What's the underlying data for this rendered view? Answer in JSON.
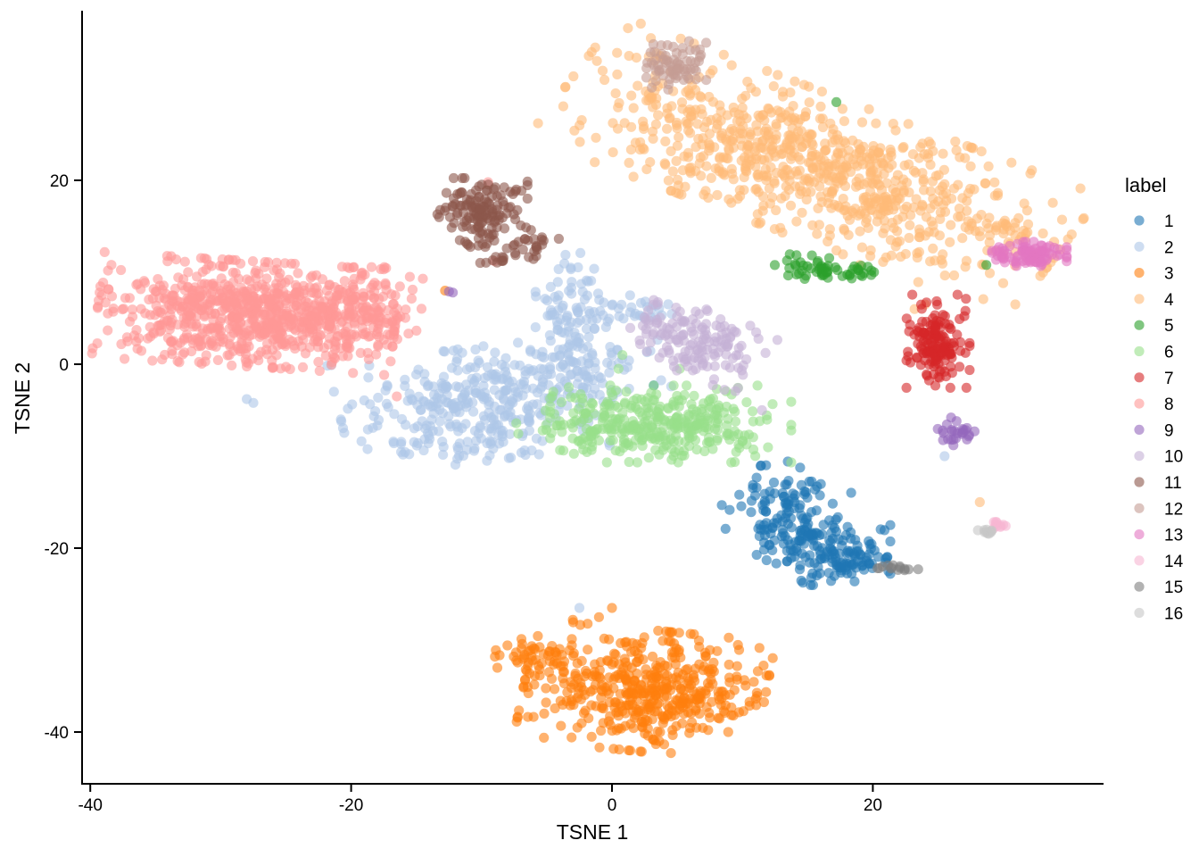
{
  "chart_data": {
    "type": "scatter",
    "title": "",
    "xlabel": "TSNE 1",
    "ylabel": "TSNE 2",
    "xlim": [
      -40.5,
      37.5
    ],
    "ylim": [
      -45.5,
      38.5
    ],
    "xticks": [
      -40,
      -20,
      0,
      20
    ],
    "yticks": [
      -40,
      -20,
      0,
      20
    ],
    "grid": false,
    "legend": {
      "title": "label",
      "position": "right"
    },
    "point_opacity": 0.6,
    "series": [
      {
        "name": "1",
        "color": "#1F77B4",
        "clusters": [
          {
            "cx": 13.5,
            "cy": -16.5,
            "sx": 2.2,
            "sy": 2.2,
            "angle": -35,
            "n": 120
          },
          {
            "cx": 16.5,
            "cy": -20.5,
            "sx": 2.2,
            "sy": 1.6,
            "angle": 0,
            "n": 120
          },
          {
            "cx": 19.0,
            "cy": -21.5,
            "sx": 1.0,
            "sy": 0.6,
            "angle": 0,
            "n": 25
          }
        ],
        "points": [
          [
            3.2,
            -2.3
          ]
        ]
      },
      {
        "name": "2",
        "color": "#AEC7E8",
        "clusters": [
          {
            "cx": -11.0,
            "cy": -4.5,
            "sx": 4.5,
            "sy": 2.8,
            "angle": 10,
            "n": 330
          },
          {
            "cx": -3.0,
            "cy": 5.5,
            "sx": 1.3,
            "sy": 3.0,
            "angle": 0,
            "n": 90
          },
          {
            "cx": -2.5,
            "cy": -1.0,
            "sx": 3.2,
            "sy": 2.2,
            "angle": 0,
            "n": 90
          },
          {
            "cx": 1.5,
            "cy": 5.8,
            "sx": 1.8,
            "sy": 0.8,
            "angle": 0,
            "n": 30
          }
        ],
        "points": [
          [
            -27.5,
            -4.2
          ],
          [
            -28.0,
            -3.8
          ],
          [
            25.5,
            -10.0
          ],
          [
            -2.5,
            -26.5
          ]
        ]
      },
      {
        "name": "3",
        "color": "#FF7F0E",
        "clusters": [
          {
            "cx": 2.5,
            "cy": -35.5,
            "sx": 4.2,
            "sy": 3.0,
            "angle": -8,
            "n": 470
          },
          {
            "cx": -6.0,
            "cy": -31.5,
            "sx": 1.4,
            "sy": 1.0,
            "angle": 0,
            "n": 40
          }
        ],
        "points": [
          [
            -1.0,
            -27.5
          ],
          [
            -3.0,
            -27.8
          ],
          [
            0.0,
            -26.5
          ],
          [
            -12.8,
            8.0
          ]
        ]
      },
      {
        "name": "4",
        "color": "#FFBB78",
        "clusters": [
          {
            "cx": 15.5,
            "cy": 21.5,
            "sx": 9.5,
            "sy": 3.4,
            "angle": -28,
            "n": 820
          },
          {
            "cx": 29.5,
            "cy": 14.5,
            "sx": 1.2,
            "sy": 0.6,
            "angle": 0,
            "n": 15
          }
        ],
        "points": [
          [
            23.8,
            24.0
          ],
          [
            24.3,
            24.2
          ],
          [
            28.2,
            -15.0
          ],
          [
            24.0,
            6.5
          ],
          [
            23.2,
            6.0
          ],
          [
            28.5,
            10.8
          ],
          [
            19.0,
            10.8
          ]
        ]
      },
      {
        "name": "5",
        "color": "#2CA02C",
        "clusters": [
          {
            "cx": 16.0,
            "cy": 10.2,
            "sx": 1.6,
            "sy": 0.8,
            "angle": 0,
            "n": 45
          },
          {
            "cx": 19.2,
            "cy": 10.0,
            "sx": 0.5,
            "sy": 0.4,
            "angle": 0,
            "n": 12
          }
        ],
        "points": [
          [
            17.2,
            28.5
          ],
          [
            28.7,
            10.8
          ]
        ]
      },
      {
        "name": "6",
        "color": "#98DF8A",
        "clusters": [
          {
            "cx": 4.5,
            "cy": -6.5,
            "sx": 4.2,
            "sy": 1.9,
            "angle": 0,
            "n": 320
          },
          {
            "cx": -2.5,
            "cy": -7.5,
            "sx": 2.2,
            "sy": 1.2,
            "angle": 0,
            "n": 40
          }
        ],
        "points": [
          [
            0.8,
            1.0
          ],
          [
            0.5,
            -0.5
          ],
          [
            -4.5,
            -3.0
          ],
          [
            5.2,
            -0.5
          ]
        ]
      },
      {
        "name": "7",
        "color": "#D62728",
        "clusters": [
          {
            "cx": 25.0,
            "cy": 2.5,
            "sx": 1.1,
            "sy": 2.3,
            "angle": 0,
            "n": 150
          }
        ],
        "points": []
      },
      {
        "name": "8",
        "color": "#FF9896",
        "clusters": [
          {
            "cx": -28.0,
            "cy": 5.5,
            "sx": 5.2,
            "sy": 2.6,
            "angle": -5,
            "n": 780
          },
          {
            "cx": -19.0,
            "cy": 5.5,
            "sx": 2.0,
            "sy": 2.3,
            "angle": 0,
            "n": 130
          }
        ],
        "points": [
          [
            -15.5,
            9.5
          ],
          [
            -14.5,
            9.3
          ],
          [
            -9.5,
            19.8
          ],
          [
            -16.5,
            -3.5
          ],
          [
            -9.0,
            11.2
          ]
        ]
      },
      {
        "name": "9",
        "color": "#9467BD",
        "clusters": [
          {
            "cx": 26.3,
            "cy": -7.5,
            "sx": 0.6,
            "sy": 0.6,
            "angle": 0,
            "n": 25
          }
        ],
        "points": [
          [
            -12.5,
            7.9
          ],
          [
            -12.2,
            7.8
          ],
          [
            27.8,
            -7.3
          ],
          [
            26.0,
            -5.8
          ]
        ]
      },
      {
        "name": "10",
        "color": "#C5B0D5",
        "clusters": [
          {
            "cx": 6.5,
            "cy": 2.5,
            "sx": 2.4,
            "sy": 1.6,
            "angle": -30,
            "n": 150
          }
        ],
        "points": [
          [
            11.5,
            -5.0
          ],
          [
            3.5,
            6.5
          ]
        ]
      },
      {
        "name": "11",
        "color": "#8C564B",
        "clusters": [
          {
            "cx": -10.0,
            "cy": 16.5,
            "sx": 1.6,
            "sy": 1.7,
            "angle": 0,
            "n": 140
          },
          {
            "cx": -6.5,
            "cy": 13.0,
            "sx": 1.3,
            "sy": 0.8,
            "angle": 0,
            "n": 25
          },
          {
            "cx": -9.0,
            "cy": 11.3,
            "sx": 0.6,
            "sy": 0.4,
            "angle": 0,
            "n": 10
          }
        ],
        "points": []
      },
      {
        "name": "12",
        "color": "#C49C94",
        "clusters": [
          {
            "cx": 4.8,
            "cy": 32.5,
            "sx": 1.1,
            "sy": 1.2,
            "angle": 0,
            "n": 70
          }
        ],
        "points": []
      },
      {
        "name": "13",
        "color": "#E377C2",
        "clusters": [
          {
            "cx": 32.0,
            "cy": 12.0,
            "sx": 1.3,
            "sy": 0.6,
            "angle": 0,
            "n": 90
          }
        ],
        "points": []
      },
      {
        "name": "14",
        "color": "#F7B6D2",
        "clusters": [
          {
            "cx": 29.8,
            "cy": -17.5,
            "sx": 0.4,
            "sy": 0.3,
            "angle": 0,
            "n": 10
          }
        ],
        "points": []
      },
      {
        "name": "15",
        "color": "#7F7F7F",
        "clusters": [
          {
            "cx": 21.8,
            "cy": -22.2,
            "sx": 0.8,
            "sy": 0.2,
            "angle": 0,
            "n": 14
          }
        ],
        "points": []
      },
      {
        "name": "16",
        "color": "#C7C7C7",
        "clusters": [
          {
            "cx": 28.8,
            "cy": -18.2,
            "sx": 0.4,
            "sy": 0.2,
            "angle": 0,
            "n": 10
          }
        ],
        "points": []
      }
    ]
  }
}
